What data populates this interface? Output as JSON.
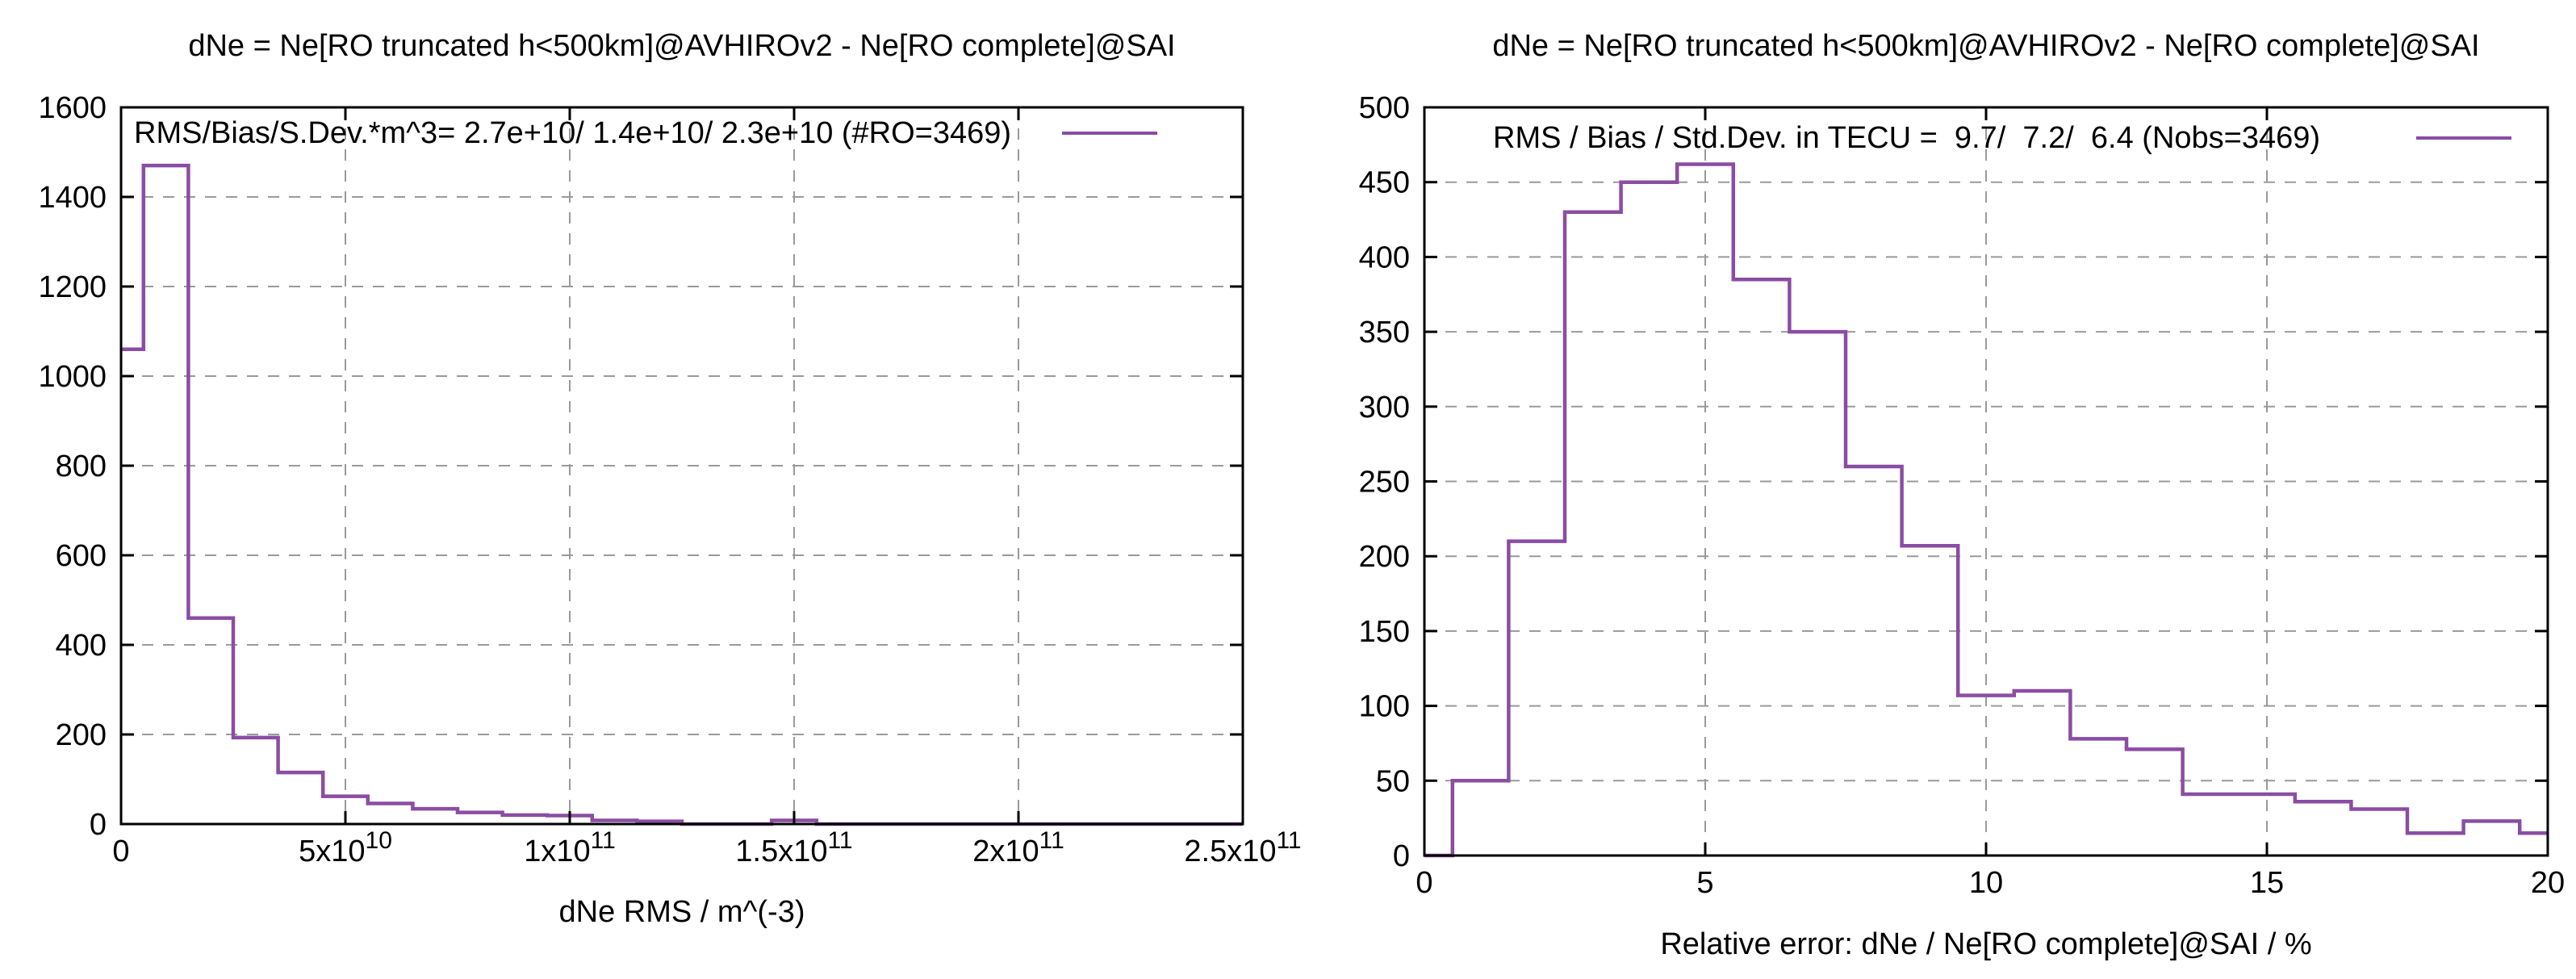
{
  "figure": {
    "background": "#ffffff",
    "text_color": "#000000",
    "grid_color": "#9a9a9a",
    "border_color": "#000000"
  },
  "chart_data": [
    {
      "type": "line",
      "style": "histeps-histogram",
      "title": "dNe = Ne[RO truncated h<500km]@AVHIROv2 - Ne[RO complete]@SAI",
      "legend": "RMS/Bias/S.Dev.*m^3= 2.7e+10/ 1.4e+10/ 2.3e+10 (#RO=3469)",
      "xlabel": "dNe RMS / m^(-3)",
      "line_color": "#8b4da3",
      "legend_position": "inside-top",
      "grid": true,
      "xlim": [
        0,
        250000000000.0
      ],
      "ylim": [
        0,
        1600
      ],
      "bin_width": 10000000000.0,
      "bin_centers": [
        0,
        10000000000.0,
        20000000000.0,
        30000000000.0,
        40000000000.0,
        50000000000.0,
        60000000000.0,
        70000000000.0,
        80000000000.0,
        90000000000.0,
        100000000000.0,
        110000000000.0,
        120000000000.0,
        130000000000.0,
        140000000000.0,
        150000000000.0,
        160000000000.0,
        170000000000.0,
        180000000000.0,
        190000000000.0,
        200000000000.0,
        210000000000.0,
        220000000000.0,
        230000000000.0,
        240000000000.0,
        250000000000.0
      ],
      "values": [
        1060,
        1470,
        460,
        193,
        115,
        62,
        46,
        34,
        26,
        20,
        19,
        8,
        6,
        0,
        0,
        8,
        0,
        0,
        0,
        0,
        0,
        0,
        0,
        0,
        0,
        0
      ],
      "x_ticks": [
        {
          "v": 0,
          "t": "0"
        },
        {
          "v": 50000000000.0,
          "t": "5x10",
          "s": "10"
        },
        {
          "v": 100000000000.0,
          "t": "1x10",
          "s": "11"
        },
        {
          "v": 150000000000.0,
          "t": "1.5x10",
          "s": "11"
        },
        {
          "v": 200000000000.0,
          "t": "2x10",
          "s": "11"
        },
        {
          "v": 250000000000.0,
          "t": "2.5x10",
          "s": "11"
        }
      ],
      "y_ticks": [
        {
          "v": 0,
          "t": "0"
        },
        {
          "v": 200,
          "t": "200"
        },
        {
          "v": 400,
          "t": "400"
        },
        {
          "v": 600,
          "t": "600"
        },
        {
          "v": 800,
          "t": "800"
        },
        {
          "v": 1000,
          "t": "1000"
        },
        {
          "v": 1200,
          "t": "1200"
        },
        {
          "v": 1400,
          "t": "1400"
        },
        {
          "v": 1600,
          "t": "1600"
        }
      ]
    },
    {
      "type": "line",
      "style": "histeps-histogram",
      "title": "dNe = Ne[RO truncated h<500km]@AVHIROv2 - Ne[RO complete]@SAI",
      "legend": "RMS / Bias / Std.Dev. in TECU =  9.7/  7.2/  6.4 (Nobs=3469)",
      "xlabel": "Relative error: dNe / Ne[RO complete]@SAI / %",
      "line_color": "#8b4da3",
      "legend_position": "inside-top",
      "grid": true,
      "xlim": [
        0,
        20
      ],
      "ylim": [
        0,
        500
      ],
      "bin_width": 1,
      "bin_centers": [
        0,
        1,
        2,
        3,
        4,
        5,
        6,
        7,
        8,
        9,
        10,
        11,
        12,
        13,
        14,
        15,
        16,
        17,
        18,
        19,
        20
      ],
      "values": [
        0,
        50,
        210,
        430,
        450,
        462,
        385,
        350,
        260,
        207,
        107,
        110,
        78,
        71,
        41,
        41,
        36,
        31,
        15,
        23,
        15
      ],
      "x_ticks": [
        {
          "v": 0,
          "t": "0"
        },
        {
          "v": 5,
          "t": "5"
        },
        {
          "v": 10,
          "t": "10"
        },
        {
          "v": 15,
          "t": "15"
        },
        {
          "v": 20,
          "t": "20"
        }
      ],
      "y_ticks": [
        {
          "v": 0,
          "t": "0"
        },
        {
          "v": 50,
          "t": "50"
        },
        {
          "v": 100,
          "t": "100"
        },
        {
          "v": 150,
          "t": "150"
        },
        {
          "v": 200,
          "t": "200"
        },
        {
          "v": 250,
          "t": "250"
        },
        {
          "v": 300,
          "t": "300"
        },
        {
          "v": 350,
          "t": "350"
        },
        {
          "v": 400,
          "t": "400"
        },
        {
          "v": 450,
          "t": "450"
        },
        {
          "v": 500,
          "t": "500"
        }
      ]
    }
  ]
}
